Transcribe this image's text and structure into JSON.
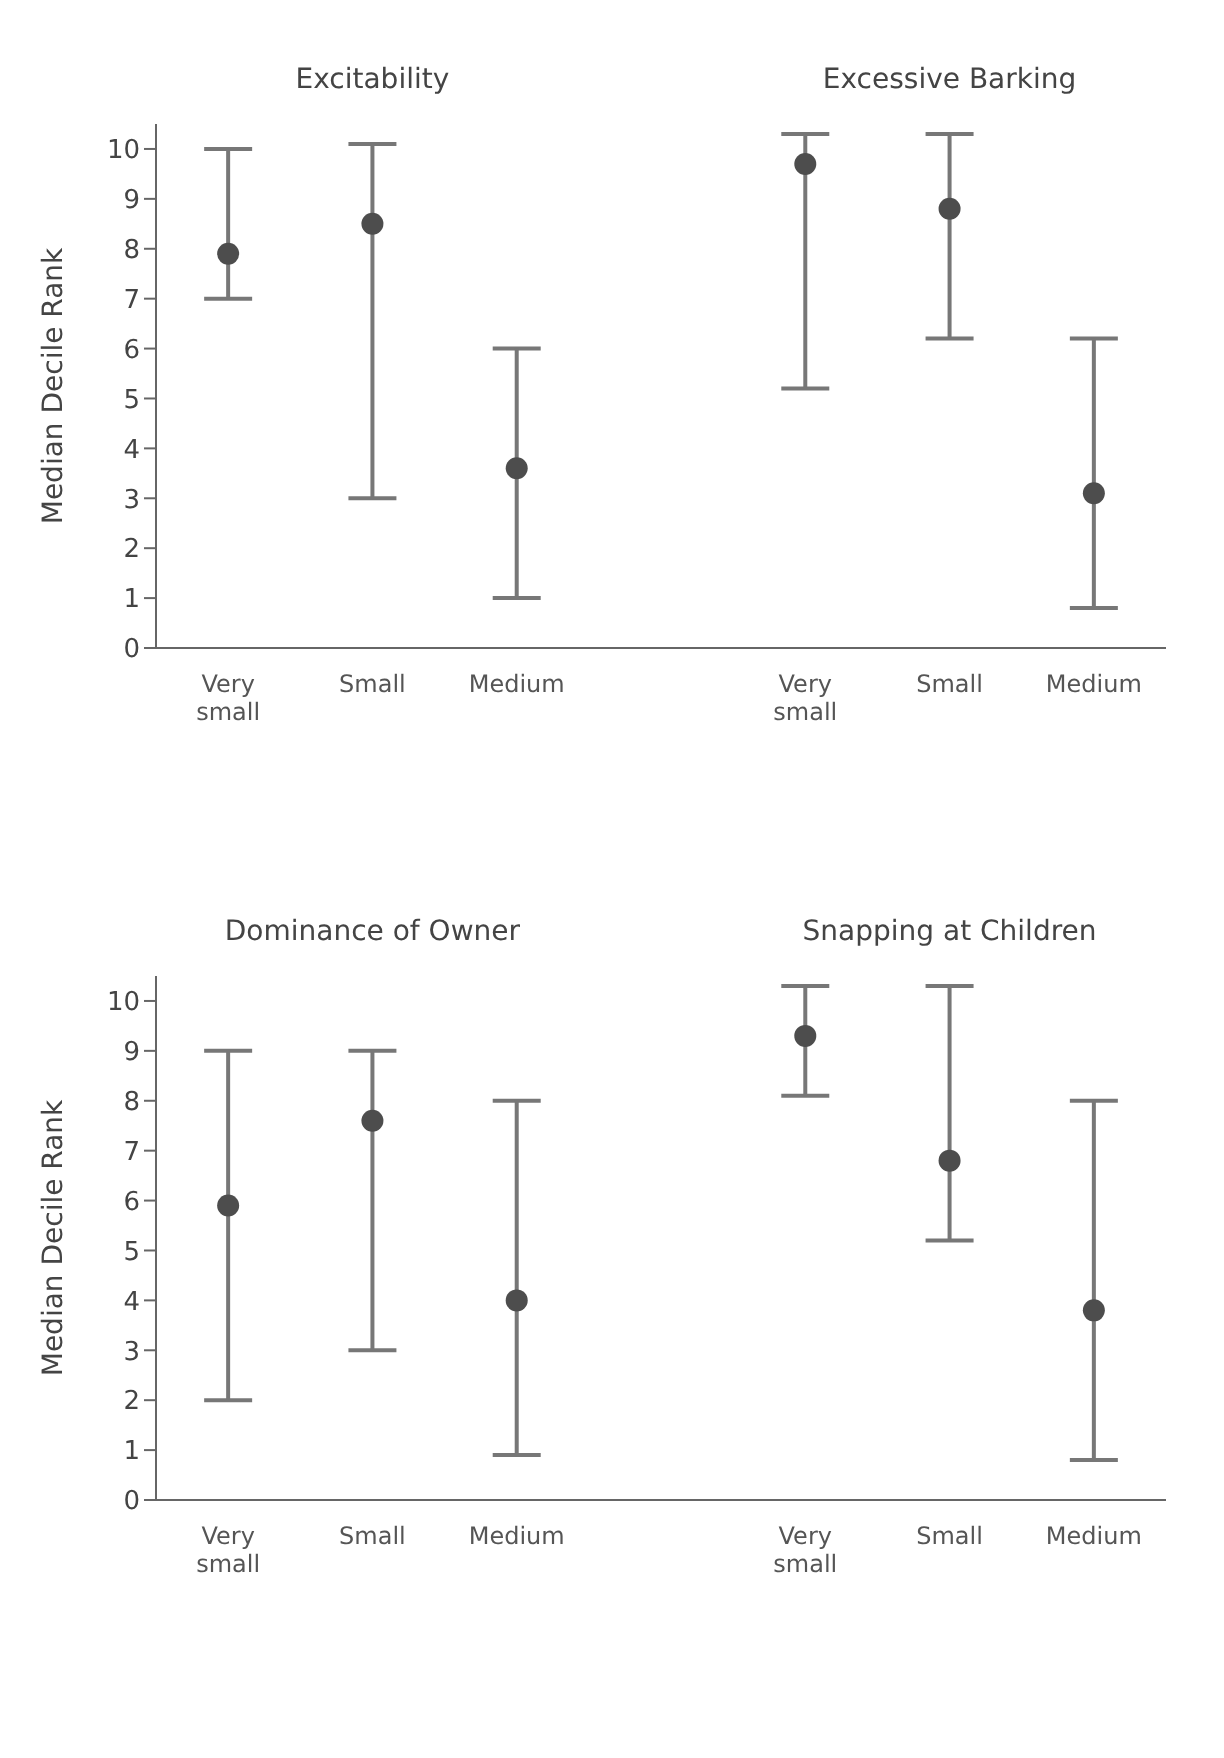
{
  "chart_data": [
    {
      "type": "scatter",
      "ylabel": "Median Decile Rank",
      "annotations": [
        "Excitability",
        "Excessive Barking"
      ],
      "categories": [
        "Very small",
        "Small",
        "Medium",
        null,
        "Very small",
        "Small",
        "Medium"
      ],
      "ylim": [
        0,
        10.5
      ],
      "yticks": [
        0,
        1,
        2,
        3,
        4,
        5,
        6,
        7,
        8,
        9,
        10
      ],
      "grid": false,
      "legend": false,
      "marker": "circle",
      "series": [
        {
          "color": "#4d4d4d",
          "values": [
            7.9,
            8.5,
            3.6,
            null,
            9.7,
            8.8,
            3.1
          ],
          "errors": [
            [
              7,
              10
            ],
            [
              3,
              10.1
            ],
            [
              1,
              6
            ],
            null,
            [
              5.2,
              10.3
            ],
            [
              6.2,
              10.3
            ],
            [
              0.8,
              6.2
            ]
          ]
        }
      ]
    },
    {
      "type": "scatter",
      "ylabel": "Median Decile Rank",
      "annotations": [
        "Dominance of Owner",
        "Snapping at Children"
      ],
      "categories": [
        "Very small",
        "Small",
        "Medium",
        null,
        "Very small",
        "Small",
        "Medium"
      ],
      "ylim": [
        0,
        10.5
      ],
      "yticks": [
        0,
        1,
        2,
        3,
        4,
        5,
        6,
        7,
        8,
        9,
        10
      ],
      "grid": false,
      "legend": false,
      "marker": "circle",
      "series": [
        {
          "color": "#4d4d4d",
          "values": [
            5.9,
            7.6,
            4.0,
            null,
            9.3,
            6.8,
            3.8
          ],
          "errors": [
            [
              2,
              9
            ],
            [
              3,
              9
            ],
            [
              0.9,
              8
            ],
            null,
            [
              8.1,
              10.3
            ],
            [
              5.2,
              10.3
            ],
            [
              0.8,
              8
            ]
          ]
        }
      ]
    }
  ]
}
